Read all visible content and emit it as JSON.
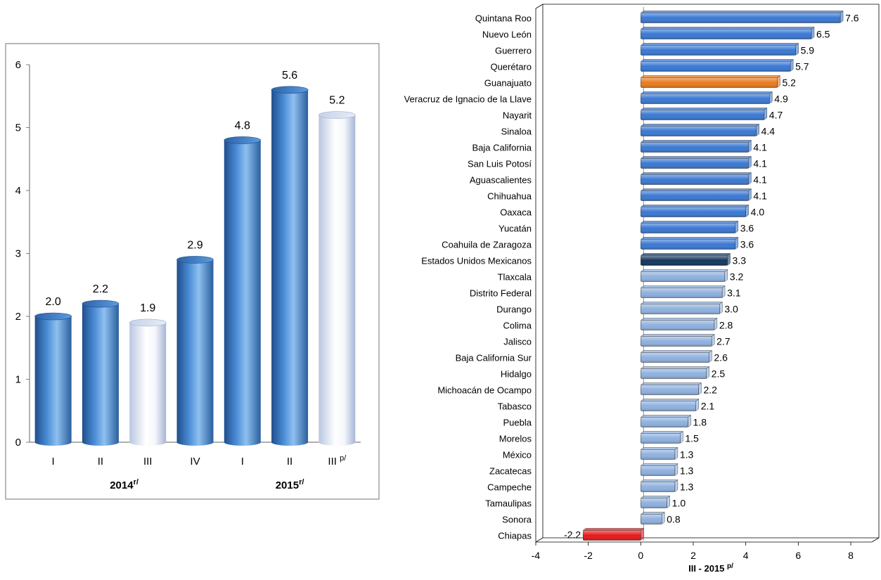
{
  "chart_data": [
    {
      "type": "bar",
      "orientation": "vertical",
      "categories": [
        "I",
        "II",
        "III",
        "IV",
        "I",
        "II",
        "III p/"
      ],
      "values": [
        2.0,
        2.2,
        1.9,
        2.9,
        4.8,
        5.6,
        5.2
      ],
      "value_labels": [
        "2.0",
        "2.2",
        "1.9",
        "2.9",
        "4.8",
        "5.6",
        "5.2"
      ],
      "highlight": [
        false,
        false,
        true,
        false,
        false,
        false,
        true
      ],
      "group_labels": [
        {
          "text": "2014",
          "superscript": "r/",
          "span": [
            0,
            3
          ]
        },
        {
          "text": "2015",
          "superscript": "r/",
          "span": [
            4,
            6
          ]
        }
      ],
      "tick_label_superscripts": [
        "",
        "",
        "",
        "",
        "",
        "",
        ""
      ],
      "ylim": [
        0,
        6
      ],
      "yticks": [
        "0",
        "1",
        "2",
        "3",
        "4",
        "5",
        "6"
      ],
      "grid": false,
      "colors": {
        "bar": "#3f7fc4",
        "highlight": "#dfe6f3",
        "frame": "#7f7f7f"
      }
    },
    {
      "type": "bar",
      "orientation": "horizontal",
      "categories": [
        "Quintana Roo",
        "Nuevo León",
        "Guerrero",
        "Querétaro",
        "Guanajuato",
        "Veracruz de Ignacio de la Llave",
        "Nayarit",
        "Sinaloa",
        "Baja California",
        "San Luis Potosí",
        "Aguascalientes",
        "Chihuahua",
        "Oaxaca",
        "Yucatán",
        "Coahuila de Zaragoza",
        "Estados Unidos Mexicanos",
        "Tlaxcala",
        "Distrito Federal",
        "Durango",
        "Colima",
        "Jalisco",
        "Baja California Sur",
        "Hidalgo",
        "Michoacán de Ocampo",
        "Tabasco",
        "Puebla",
        "Morelos",
        "México",
        "Zacatecas",
        "Campeche",
        "Tamaulipas",
        "Sonora",
        "Chiapas"
      ],
      "values": [
        7.6,
        6.5,
        5.9,
        5.7,
        5.2,
        4.9,
        4.7,
        4.4,
        4.1,
        4.1,
        4.1,
        4.1,
        4.0,
        3.6,
        3.6,
        3.3,
        3.2,
        3.1,
        3.0,
        2.8,
        2.7,
        2.6,
        2.5,
        2.2,
        2.1,
        1.8,
        1.5,
        1.3,
        1.3,
        1.3,
        1.0,
        0.8,
        -2.2
      ],
      "value_labels": [
        "7.6",
        "6.5",
        "5.9",
        "5.7",
        "5.2",
        "4.9",
        "4.7",
        "4.4",
        "4.1",
        "4.1",
        "4.1",
        "4.1",
        "4.0",
        "3.6",
        "3.6",
        "3.3",
        "3.2",
        "3.1",
        "3.0",
        "2.8",
        "2.7",
        "2.6",
        "2.5",
        "2.2",
        "2.1",
        "1.8",
        "1.5",
        "1.3",
        "1.3",
        "1.3",
        "1.0",
        "0.8",
        "-2.2"
      ],
      "bar_colors": [
        "#3a78d4",
        "#3a78d4",
        "#3a78d4",
        "#3a78d4",
        "#e87c1e",
        "#3a78d4",
        "#3a78d4",
        "#3a78d4",
        "#3a78d4",
        "#3a78d4",
        "#3a78d4",
        "#3a78d4",
        "#3a78d4",
        "#3a78d4",
        "#3a78d4",
        "#15365c",
        "#8fb1df",
        "#8fb1df",
        "#8fb1df",
        "#8fb1df",
        "#8fb1df",
        "#8fb1df",
        "#8fb1df",
        "#8fb1df",
        "#8fb1df",
        "#8fb1df",
        "#8fb1df",
        "#8fb1df",
        "#8fb1df",
        "#8fb1df",
        "#8fb1df",
        "#8fb1df",
        "#e81818"
      ],
      "xlabel": {
        "text": "III - 2015",
        "superscript": "p/"
      },
      "xlim": [
        -4,
        8
      ],
      "xticks": [
        "-4",
        "-2",
        "0",
        "2",
        "4",
        "6",
        "8"
      ],
      "grid": false
    }
  ]
}
